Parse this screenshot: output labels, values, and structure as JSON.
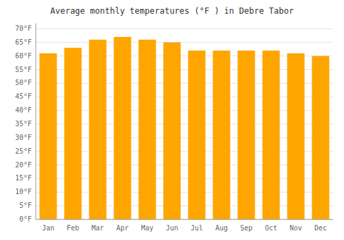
{
  "chart_data": {
    "type": "bar",
    "title": "Average monthly temperatures (°F ) in Debre Tabor",
    "categories": [
      "Jan",
      "Feb",
      "Mar",
      "Apr",
      "May",
      "Jun",
      "Jul",
      "Aug",
      "Sep",
      "Oct",
      "Nov",
      "Dec"
    ],
    "values": [
      61,
      63,
      66,
      67,
      66,
      65,
      62,
      62,
      62,
      62,
      61,
      60
    ],
    "color": "#FFA500",
    "ylim": [
      0,
      72
    ],
    "yticks": [
      {
        "value": 0,
        "label": "0°F"
      },
      {
        "value": 5,
        "label": "5°F"
      },
      {
        "value": 10,
        "label": "10°F"
      },
      {
        "value": 15,
        "label": "15°F"
      },
      {
        "value": 20,
        "label": "20°F"
      },
      {
        "value": 25,
        "label": "25°F"
      },
      {
        "value": 30,
        "label": "30°F"
      },
      {
        "value": 35,
        "label": "35°F"
      },
      {
        "value": 40,
        "label": "40°F"
      },
      {
        "value": 45,
        "label": "45°F"
      },
      {
        "value": 50,
        "label": "50°F"
      },
      {
        "value": 55,
        "label": "55°F"
      },
      {
        "value": 60,
        "label": "60°F"
      },
      {
        "value": 65,
        "label": "65°F"
      },
      {
        "value": 70,
        "label": "70°F"
      }
    ],
    "grid": true
  }
}
